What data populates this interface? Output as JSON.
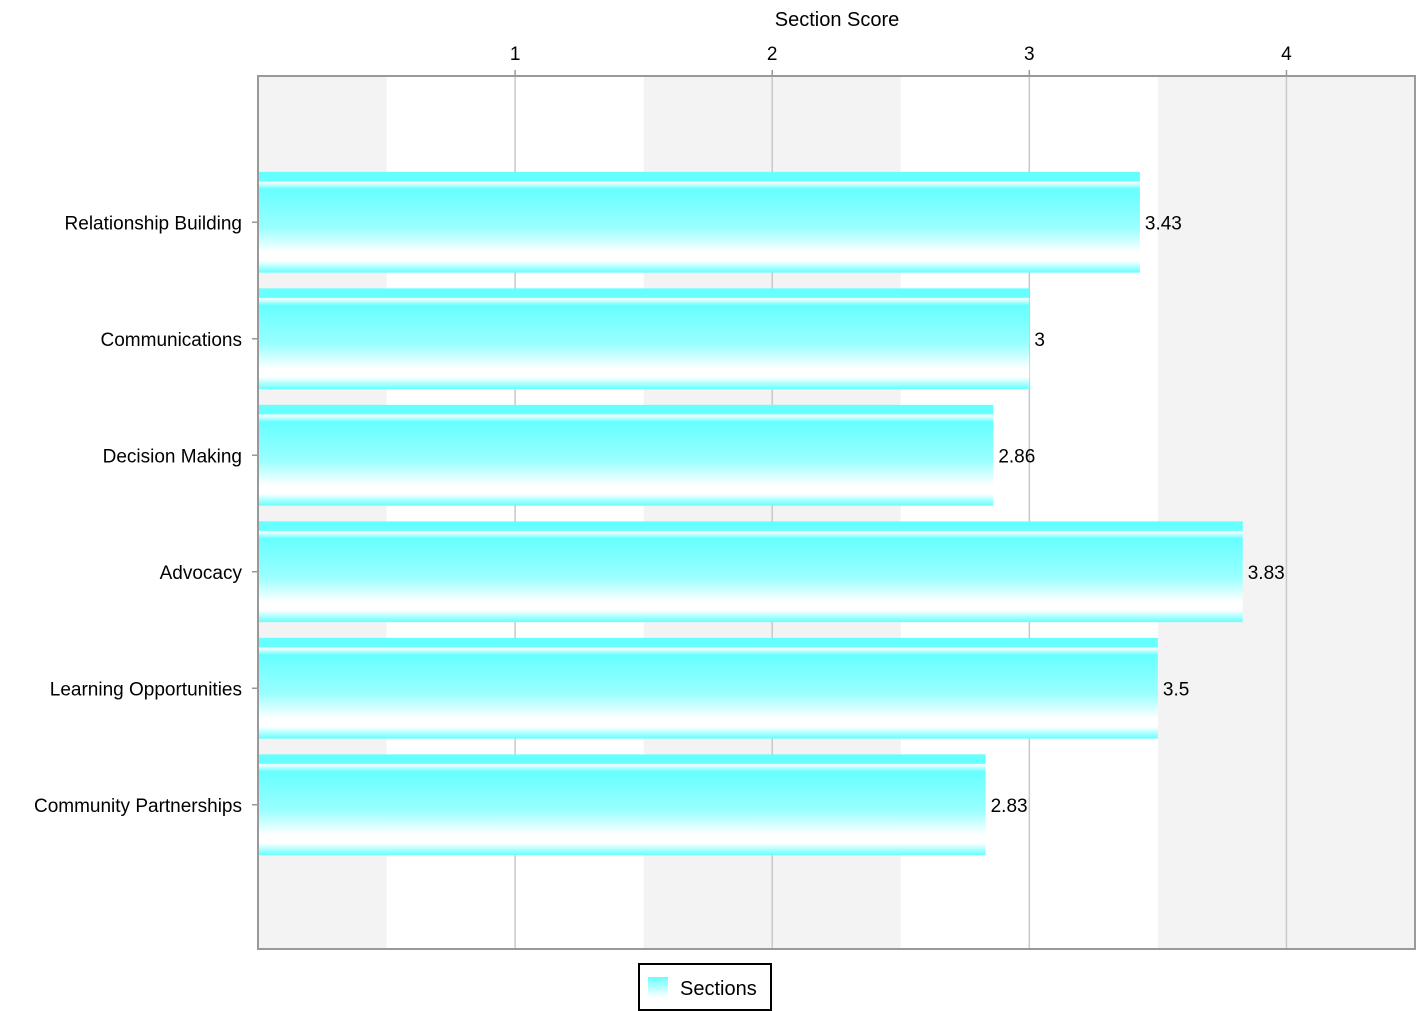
{
  "chart_data": {
    "type": "bar",
    "orientation": "horizontal",
    "xlabel": "Section Score",
    "xaxis_position": "top",
    "xlim": [
      0,
      4.5
    ],
    "ticks": [
      1,
      2,
      3,
      4
    ],
    "bands": [
      [
        0,
        0.5
      ],
      [
        1.5,
        2.5
      ],
      [
        3.5,
        4.5
      ]
    ],
    "grid": true,
    "categories": [
      "Relationship Building",
      "Communications",
      "Decision Making",
      "Advocacy",
      "Learning Opportunities",
      "Community Partnerships"
    ],
    "series": [
      {
        "name": "Sections",
        "values": [
          3.43,
          3,
          2.86,
          3.83,
          3.5,
          2.83
        ]
      }
    ],
    "data_labels": [
      "3.43",
      "3",
      "2.86",
      "3.83",
      "3.5",
      "2.83"
    ],
    "legend": {
      "placement": "bottom",
      "entries": [
        "Sections"
      ]
    },
    "colors": {
      "bar": "#66ffff",
      "bar_light": "#ffffff",
      "band": "#f3f3f3",
      "grid": "#c8c8c8",
      "frame": "#999999"
    }
  }
}
